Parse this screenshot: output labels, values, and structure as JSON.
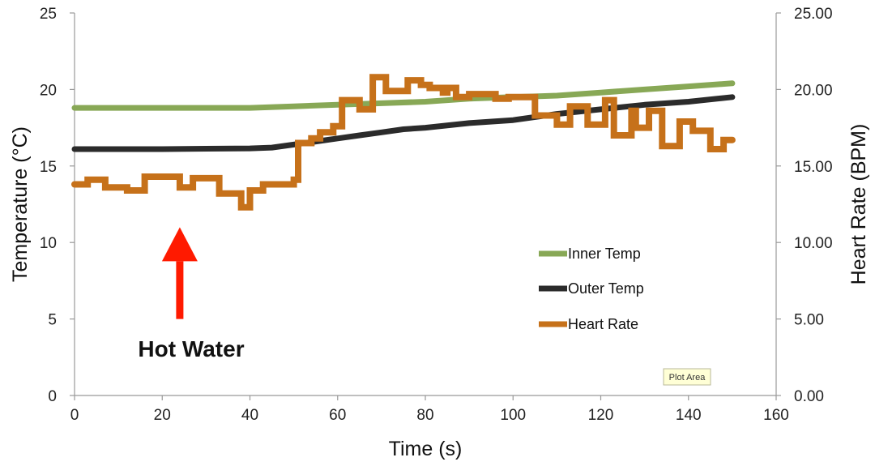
{
  "chart_data": {
    "type": "line",
    "xlabel": "Time (s)",
    "ylabel": "Temperature (°C)",
    "y2label": "Heart Rate (BPM)",
    "xlim": [
      0,
      160
    ],
    "ylim": [
      0,
      25
    ],
    "y2lim": [
      0,
      25
    ],
    "x_ticks": [
      "0",
      "20",
      "40",
      "60",
      "80",
      "100",
      "120",
      "140",
      "160"
    ],
    "y_ticks": [
      "0",
      "5",
      "10",
      "15",
      "20",
      "25"
    ],
    "y2_ticks": [
      "0.00",
      "5.00",
      "10.00",
      "15.00",
      "20.00",
      "25.00"
    ],
    "grid": false,
    "legend_position": "right-center",
    "series": [
      {
        "name": "Inner Temp",
        "axis": "left",
        "color": "#88a856",
        "x": [
          0,
          20,
          40,
          50,
          60,
          70,
          80,
          90,
          100,
          110,
          120,
          130,
          140,
          150
        ],
        "y": [
          18.8,
          18.8,
          18.8,
          18.9,
          19.0,
          19.1,
          19.2,
          19.4,
          19.5,
          19.6,
          19.8,
          20.0,
          20.2,
          20.4
        ]
      },
      {
        "name": "Outer Temp",
        "axis": "left",
        "color": "#2b2b2b",
        "x": [
          0,
          20,
          40,
          45,
          50,
          55,
          60,
          65,
          70,
          75,
          80,
          90,
          100,
          110,
          120,
          130,
          140,
          150
        ],
        "y": [
          16.1,
          16.1,
          16.15,
          16.2,
          16.4,
          16.6,
          16.8,
          17.0,
          17.2,
          17.4,
          17.5,
          17.8,
          18.0,
          18.4,
          18.7,
          19.0,
          19.2,
          19.5
        ]
      },
      {
        "name": "Heart Rate",
        "axis": "right",
        "color": "#c6711a",
        "step": true,
        "x": [
          0,
          3,
          7,
          12,
          16,
          20,
          24,
          27,
          29,
          33,
          35,
          38,
          40,
          43,
          46,
          50,
          51,
          54,
          56,
          59,
          61,
          62,
          65,
          67,
          68,
          71,
          74,
          76,
          79,
          81,
          84,
          85,
          87,
          90,
          93,
          96,
          99,
          102,
          105,
          108,
          110,
          113,
          114,
          117,
          119,
          121,
          123,
          124,
          127,
          128,
          131,
          134,
          135,
          138,
          141,
          142,
          145,
          148,
          150
        ],
        "y": [
          13.8,
          14.1,
          13.6,
          13.4,
          14.3,
          14.3,
          13.6,
          14.2,
          14.2,
          13.2,
          13.2,
          12.3,
          13.4,
          13.8,
          13.8,
          14.1,
          16.5,
          16.8,
          17.2,
          17.6,
          19.3,
          19.3,
          18.7,
          18.7,
          20.8,
          19.9,
          19.9,
          20.6,
          20.3,
          20.1,
          19.8,
          20.1,
          19.5,
          19.7,
          19.7,
          19.4,
          19.5,
          19.5,
          18.3,
          18.3,
          17.7,
          18.9,
          18.9,
          17.7,
          17.7,
          19.3,
          17.0,
          17.0,
          18.6,
          17.5,
          18.6,
          16.3,
          16.3,
          17.9,
          17.3,
          17.3,
          16.1,
          16.7,
          16.7
        ]
      }
    ],
    "annotations": [
      {
        "text": "Hot Water",
        "arrow_x": 24,
        "arrow_to_y": 11,
        "arrow_from_y": 5,
        "color": "#ff1a00"
      }
    ],
    "hover_label": "Plot Area"
  }
}
